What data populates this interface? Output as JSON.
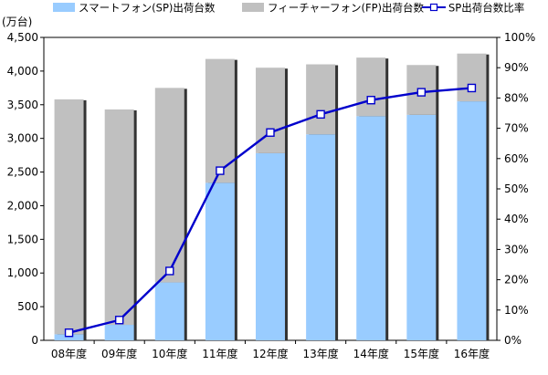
{
  "chart_data": {
    "type": "bar",
    "stacked": true,
    "categories": [
      "08年度",
      "09年度",
      "10年度",
      "11年度",
      "12年度",
      "13年度",
      "14年度",
      "15年度",
      "16年度"
    ],
    "series": [
      {
        "name": "スマートフォン(SP)出荷台数",
        "type": "bar",
        "axis": "left",
        "color": "#99ccff",
        "values": [
          90,
          230,
          860,
          2340,
          2780,
          3060,
          3330,
          3350,
          3550
        ]
      },
      {
        "name": "フィーチャーフォン(FP)出荷台数",
        "type": "bar",
        "axis": "left",
        "color": "#c0c0c0",
        "values": [
          3490,
          3200,
          2890,
          1840,
          1270,
          1040,
          870,
          740,
          710
        ]
      },
      {
        "name": "SP出荷台数比率",
        "type": "line",
        "axis": "right",
        "color": "#0000cc",
        "values": [
          2.5,
          6.7,
          22.9,
          56.0,
          68.6,
          74.6,
          79.3,
          81.9,
          83.3
        ]
      }
    ],
    "y_left": {
      "unit": "(万台)",
      "ylim": [
        0,
        4500
      ],
      "ticks": [
        "0",
        "500",
        "1,000",
        "1,500",
        "2,000",
        "2,500",
        "3,000",
        "3,500",
        "4,000",
        "4,500"
      ]
    },
    "y_right": {
      "ylim": [
        0,
        100
      ],
      "ticks": [
        "0%",
        "10%",
        "20%",
        "30%",
        "40%",
        "50%",
        "60%",
        "70%",
        "80%",
        "90%",
        "100%"
      ]
    },
    "grid": false,
    "legend_position": "top"
  }
}
